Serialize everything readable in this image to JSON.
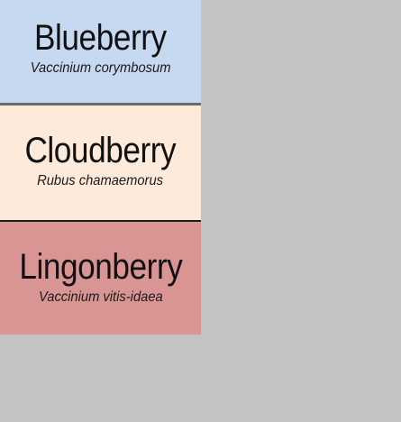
{
  "cards": [
    {
      "name": "Blueberry",
      "latin": "Vaccinium corymbosum",
      "color": "#c6d9f1"
    },
    {
      "name": "Cloudberry",
      "latin": "Rubus chamaemorus",
      "color": "#fdeada"
    },
    {
      "name": "Lingonberry",
      "latin": "Vaccinium vitis-idaea",
      "color": "#d99594"
    }
  ],
  "background_color": "#c3c3c3"
}
